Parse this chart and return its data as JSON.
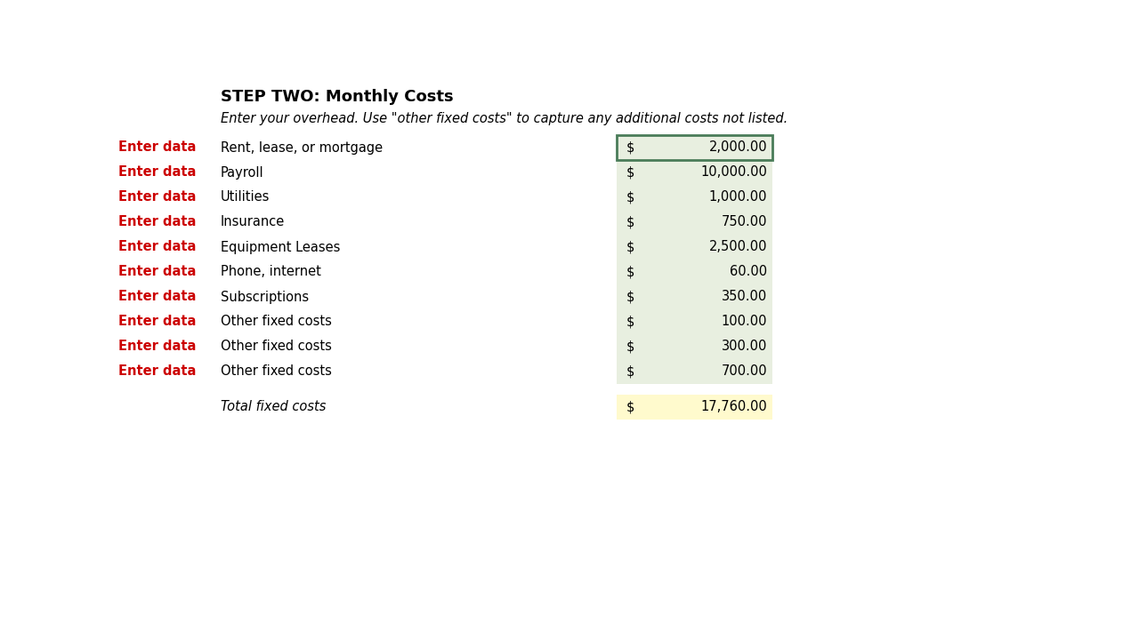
{
  "title": "STEP TWO: Monthly Costs",
  "subtitle": "Enter your overhead. Use \"other fixed costs\" to capture any additional costs not listed.",
  "rows": [
    {
      "label": "Rent, lease, or mortgage",
      "value": 2000.0
    },
    {
      "label": "Payroll",
      "value": 10000.0
    },
    {
      "label": "Utilities",
      "value": 1000.0
    },
    {
      "label": "Insurance",
      "value": 750.0
    },
    {
      "label": "Equipment Leases",
      "value": 2500.0
    },
    {
      "label": "Phone, internet",
      "value": 60.0
    },
    {
      "label": "Subscriptions",
      "value": 350.0
    },
    {
      "label": "Other fixed costs",
      "value": 100.0
    },
    {
      "label": "Other fixed costs",
      "value": 300.0
    },
    {
      "label": "Other fixed costs",
      "value": 700.0
    }
  ],
  "total_label": "Total fixed costs",
  "total_value": 17760.0,
  "enter_data_color": "#CC0000",
  "cell_bg_light": "#E8EFE0",
  "cell_border_color": "#4A7C59",
  "total_bg": "#FFFACD",
  "bg_color": "#FFFFFF",
  "title_fontsize": 13,
  "subtitle_fontsize": 10.5,
  "row_fontsize": 10.5,
  "enter_data_fontsize": 10.5
}
